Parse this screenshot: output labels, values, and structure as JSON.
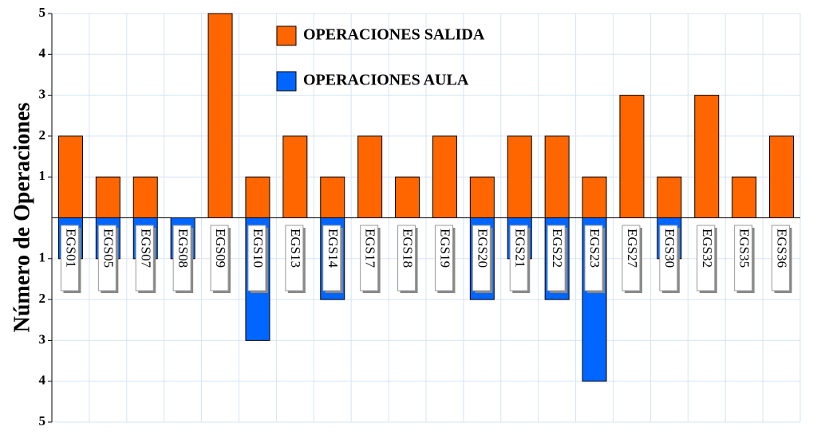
{
  "chart_data": {
    "type": "bar",
    "y_label": "Número de Operaciones",
    "categories": [
      "EGS01",
      "EGS05",
      "EGS07",
      "EGS08",
      "EGS09",
      "EGS10",
      "EGS13",
      "EGS14",
      "EGS17",
      "EGS18",
      "EGS19",
      "EGS20",
      "EGS21",
      "EGS22",
      "EGS23",
      "EGS27",
      "EGS30",
      "EGS32",
      "EGS35",
      "EGS36"
    ],
    "series": [
      {
        "name": "OPERACIONES SALIDA",
        "color": "#ff6600",
        "values": [
          2,
          1,
          1,
          0,
          5,
          1,
          2,
          1,
          2,
          1,
          2,
          1,
          2,
          2,
          1,
          3,
          1,
          3,
          1,
          2
        ]
      },
      {
        "name": "OPERACIONES AULA",
        "color": "#0066ff",
        "values": [
          -1,
          -1,
          -1,
          -1,
          0,
          -3,
          0,
          -2,
          0,
          0,
          0,
          -2,
          -1,
          -2,
          -4,
          0,
          -1,
          0,
          0,
          0
        ]
      }
    ],
    "ylim": [
      -5,
      5
    ],
    "yticks": [
      {
        "value": -5,
        "label": "5"
      },
      {
        "value": -4,
        "label": "4"
      },
      {
        "value": -3,
        "label": "3"
      },
      {
        "value": -2,
        "label": "2"
      },
      {
        "value": -1,
        "label": "1"
      },
      1,
      2,
      3,
      4,
      5
    ],
    "grid": true
  }
}
